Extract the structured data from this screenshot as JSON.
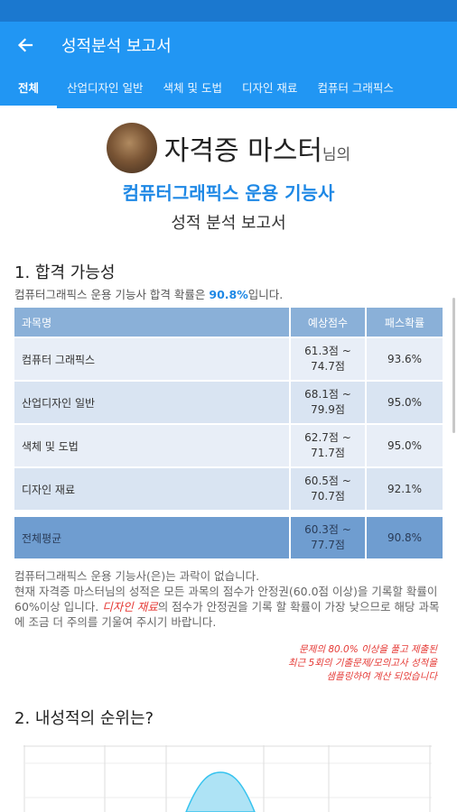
{
  "app_bar": {
    "title": "성적분석 보고서",
    "back_icon": "arrow-left-icon"
  },
  "tabs": [
    {
      "label": "전체",
      "active": true
    },
    {
      "label": "산업디자인 일반",
      "active": false
    },
    {
      "label": "색체 및 도법",
      "active": false
    },
    {
      "label": "디자인 재료",
      "active": false
    },
    {
      "label": "컴퓨터 그래픽스",
      "active": false
    }
  ],
  "header": {
    "user_name": "자격증 마스터",
    "user_suffix": "님의",
    "cert_title": "컴퓨터그래픽스 운용 기능사",
    "report_title": "성적 분석 보고서"
  },
  "section1": {
    "title": "1. 합격 가능성",
    "desc_prefix": "컴퓨터그래픽스 운용 기능사 합격 확률은 ",
    "desc_value": "90.8%",
    "desc_suffix": "입니다."
  },
  "table": {
    "headers": [
      "과목명",
      "예상점수",
      "패스확률"
    ],
    "rows": [
      {
        "subject": "컴퓨터 그래픽스",
        "score_low": "61.3점 ~",
        "score_high": "74.7점",
        "pass": "93.6%"
      },
      {
        "subject": "산업디자인 일반",
        "score_low": "68.1점 ~",
        "score_high": "79.9점",
        "pass": "95.0%"
      },
      {
        "subject": "색체 및 도법",
        "score_low": "62.7점 ~",
        "score_high": "71.7점",
        "pass": "95.0%"
      },
      {
        "subject": "디자인 재료",
        "score_low": "60.5점 ~",
        "score_high": "70.7점",
        "pass": "92.1%"
      }
    ],
    "average": {
      "subject": "전체평균",
      "score_low": "60.3점 ~",
      "score_high": "77.7점",
      "pass": "90.8%"
    }
  },
  "notice": {
    "line1": "컴퓨터그래픽스 운용 기능사(은)는 과락이 없습니다.",
    "line2": "현재 자격증 마스터님의 성적은 모든 과목의 점수가 안정권(60.0점 이상)을 기록할 확률이 60%이상 입니다. ",
    "highlight": "디자인 재료",
    "line3": "의 점수가 안정권을 기록 할 확률이 가장 낮으므로 해당 과목에 조금 더 주의를 기울여 주시기 바랍니다."
  },
  "footnote": {
    "line1": "문제의 80.0% 이상을 풀고 제출된",
    "line2": "최근 5회의 기출문제/모의고사 성적을",
    "line3": "샘플링하여 계산 되었습니다"
  },
  "section2": {
    "title": "2. 내성적의 순위는?"
  },
  "colors": {
    "primary": "#2196f3",
    "status_bar": "#1b78cf",
    "accent_text": "#1e88e5",
    "warning": "#e53935",
    "chart_fill": "#aee3f5",
    "chart_line": "#36c3ef"
  }
}
